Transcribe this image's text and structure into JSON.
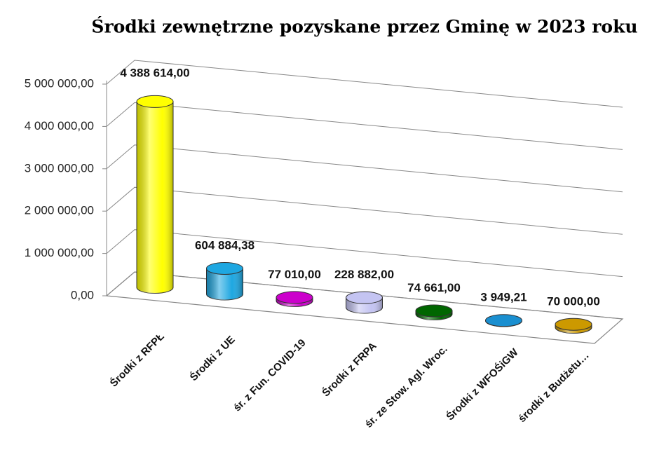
{
  "chart_data": {
    "type": "bar3d",
    "title": "Środki zewnętrzne pozyskane przez Gminę w 2023 roku",
    "categories": [
      "Środki z RFPŁ",
      "Środki z UE",
      "śr. z Fun. COVID-19",
      "Środki z FRPA",
      "śr. ze Stow. Agl. Wroc.",
      "Środki z WFOŚiGW",
      "środki z Budżetu…"
    ],
    "values": [
      4388614,
      604884.38,
      77010,
      228882,
      74661,
      3949.21,
      70000
    ],
    "value_labels": [
      "4 388 614,00",
      "604 884,38",
      "77 010,00",
      "228 882,00",
      "74 661,00",
      "3 949,21",
      "70 000,00"
    ],
    "colors": [
      "#ffff00",
      "#1ea7e1",
      "#cc00cc",
      "#c4c4f2",
      "#006600",
      "#1a8fd0",
      "#cc9900"
    ],
    "ylim": [
      0,
      5000000
    ],
    "yticks": [
      {
        "value": 0,
        "label": "0,00"
      },
      {
        "value": 1000000,
        "label": "1 000 000,00"
      },
      {
        "value": 2000000,
        "label": "2 000 000,00"
      },
      {
        "value": 3000000,
        "label": "3 000 000,00"
      },
      {
        "value": 4000000,
        "label": "4 000 000,00"
      },
      {
        "value": 5000000,
        "label": "5 000 000,00"
      }
    ],
    "grid": true
  }
}
